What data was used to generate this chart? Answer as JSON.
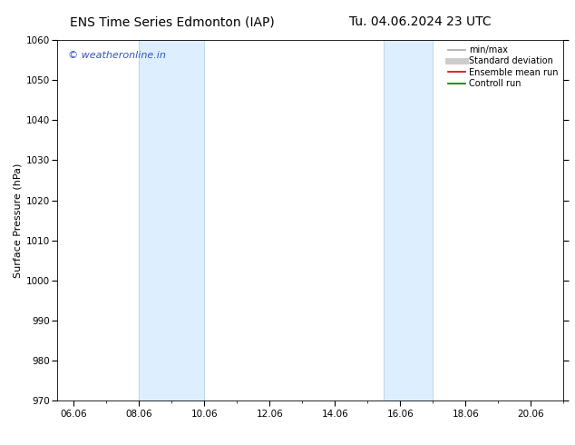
{
  "title_left": "ENS Time Series Edmonton (IAP)",
  "title_right": "Tu. 04.06.2024 23 UTC",
  "ylabel": "Surface Pressure (hPa)",
  "ylim": [
    970,
    1060
  ],
  "yticks": [
    970,
    980,
    990,
    1000,
    1010,
    1020,
    1030,
    1040,
    1050,
    1060
  ],
  "xlim_start": 5.5,
  "xlim_end": 21.0,
  "xtick_labels": [
    "06.06",
    "08.06",
    "10.06",
    "12.06",
    "14.06",
    "16.06",
    "18.06",
    "20.06"
  ],
  "xtick_positions": [
    6.0,
    8.0,
    10.0,
    12.0,
    14.0,
    16.0,
    18.0,
    20.0
  ],
  "shaded_bands": [
    {
      "x_start": 8.0,
      "x_end": 10.0
    },
    {
      "x_start": 15.5,
      "x_end": 17.0
    }
  ],
  "band_color": "#ddeeff",
  "band_edge_color": "#aaccdd",
  "watermark_text": "© weatheronline.in",
  "watermark_color": "#3355bb",
  "background_color": "#ffffff",
  "legend_entries": [
    {
      "label": "min/max",
      "color": "#aaaaaa",
      "lw": 1.2,
      "style": "solid"
    },
    {
      "label": "Standard deviation",
      "color": "#cccccc",
      "lw": 5,
      "style": "solid"
    },
    {
      "label": "Ensemble mean run",
      "color": "#dd0000",
      "lw": 1.2,
      "style": "solid"
    },
    {
      "label": "Controll run",
      "color": "#007700",
      "lw": 1.2,
      "style": "solid"
    }
  ],
  "title_fontsize": 10,
  "axis_fontsize": 8,
  "tick_fontsize": 7.5,
  "watermark_fontsize": 8,
  "legend_fontsize": 7
}
